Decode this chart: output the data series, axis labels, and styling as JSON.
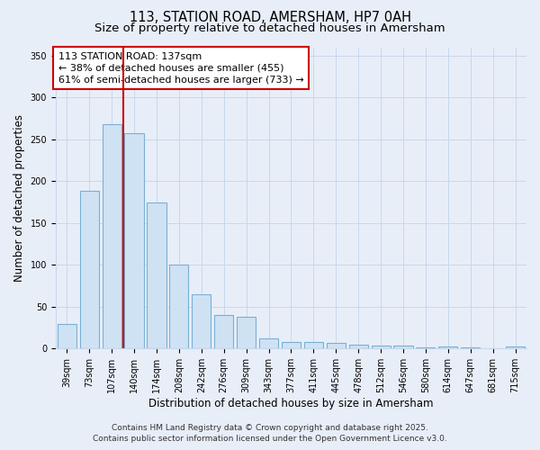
{
  "title_line1": "113, STATION ROAD, AMERSHAM, HP7 0AH",
  "title_line2": "Size of property relative to detached houses in Amersham",
  "xlabel": "Distribution of detached houses by size in Amersham",
  "ylabel": "Number of detached properties",
  "categories": [
    "39sqm",
    "73sqm",
    "107sqm",
    "140sqm",
    "174sqm",
    "208sqm",
    "242sqm",
    "276sqm",
    "309sqm",
    "343sqm",
    "377sqm",
    "411sqm",
    "445sqm",
    "478sqm",
    "512sqm",
    "546sqm",
    "580sqm",
    "614sqm",
    "647sqm",
    "681sqm",
    "715sqm"
  ],
  "values": [
    29,
    188,
    268,
    257,
    175,
    100,
    65,
    40,
    38,
    12,
    8,
    8,
    7,
    5,
    4,
    4,
    1,
    2,
    1,
    0,
    2
  ],
  "bar_color": "#cfe2f3",
  "bar_edge_color": "#7ab0d4",
  "grid_color": "#c8d8ec",
  "background_color": "#e8eef8",
  "property_line_x": 3,
  "property_line_color": "#cc0000",
  "annotation_text": "113 STATION ROAD: 137sqm\n← 38% of detached houses are smaller (455)\n61% of semi-detached houses are larger (733) →",
  "annotation_box_facecolor": "#ffffff",
  "annotation_box_edgecolor": "#cc0000",
  "ylim": [
    0,
    360
  ],
  "yticks": [
    0,
    50,
    100,
    150,
    200,
    250,
    300,
    350
  ],
  "footer_line1": "Contains HM Land Registry data © Crown copyright and database right 2025.",
  "footer_line2": "Contains public sector information licensed under the Open Government Licence v3.0.",
  "title_fontsize": 10.5,
  "subtitle_fontsize": 9.5,
  "axis_label_fontsize": 8.5,
  "tick_fontsize": 7,
  "annotation_fontsize": 8,
  "footer_fontsize": 6.5
}
